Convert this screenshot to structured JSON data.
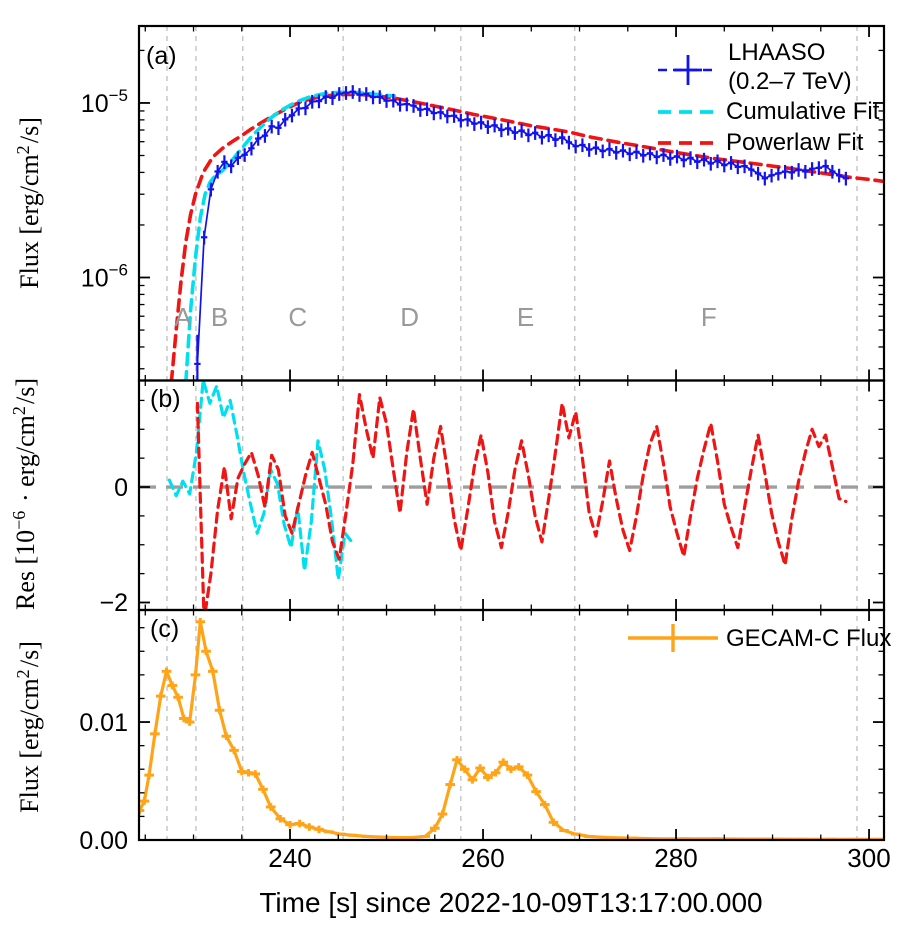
{
  "x_axis": {
    "label": "Time [s] since 2022-10-09T13:17:00.000",
    "min": 224.35,
    "max": 301.55,
    "major_ticks": [
      240,
      260,
      280,
      300
    ],
    "tick_labels": [
      "240",
      "260",
      "280",
      "300"
    ],
    "minor_ticks": [
      225,
      230,
      235,
      245,
      250,
      255,
      265,
      270,
      275,
      285,
      290,
      295
    ]
  },
  "colors": {
    "lhaaso_blue": "#1212ee",
    "cumulative_cyan": "#00dff0",
    "powerlaw_red": "#f01515",
    "gecam_orange": "#ffa418",
    "grid_gray": "#c4c4c4",
    "zero_line_gray": "#9e9e9e",
    "phase_label_gray": "#999999",
    "axis_black": "#000000"
  },
  "phases": {
    "line_times": [
      227.25,
      230.25,
      235.1,
      245.5,
      257.7,
      269.5,
      298.75
    ],
    "labels": [
      {
        "text": "A",
        "t": 228.9
      },
      {
        "text": "B",
        "t": 232.7
      },
      {
        "text": "C",
        "t": 240.8
      },
      {
        "text": "D",
        "t": 252.4
      },
      {
        "text": "E",
        "t": 264.4
      },
      {
        "text": "F",
        "t": 283.4
      }
    ]
  },
  "panels": {
    "a": {
      "label": "(a)",
      "ylabel_parts": [
        {
          "t": "Flux [erg/cm"
        },
        {
          "sup": "2"
        },
        {
          "t": "/s]"
        }
      ],
      "ytick_sup": [
        {
          "v_1e6": 10,
          "base": "10",
          "sup": "−5"
        },
        {
          "v_1e6": 1,
          "base": "10",
          "sup": "−6"
        }
      ],
      "y_minor_1e6": [
        0.3,
        0.4,
        0.5,
        0.6,
        0.7,
        0.8,
        0.9,
        2,
        3,
        4,
        5,
        6,
        7,
        8,
        9,
        20
      ]
    },
    "b": {
      "label": "(b)",
      "ylabel_parts": [
        {
          "t": "Res [10"
        },
        {
          "sup": "−6"
        },
        {
          "t": " · erg/cm"
        },
        {
          "sup": "2"
        },
        {
          "t": "/s]"
        }
      ],
      "ytick_values": [
        0,
        -2
      ],
      "ytick_labels": [
        "0",
        "−2"
      ],
      "y_minor": [
        1.5,
        1.0,
        0.5,
        -0.5,
        -1.0,
        -1.5
      ]
    },
    "c": {
      "label": "(c)",
      "ylabel_parts": [
        {
          "t": "Flux [erg/cm"
        },
        {
          "sup": "2"
        },
        {
          "t": "/s]"
        }
      ],
      "ytick_values": [
        0.01,
        0
      ],
      "ytick_labels": [
        "0.01",
        "0.00"
      ],
      "y_minor": [
        0.002,
        0.004,
        0.006,
        0.008,
        0.012,
        0.014,
        0.016,
        0.018
      ]
    }
  },
  "legend_a": {
    "items": [
      {
        "name": "lhaaso",
        "line1": "LHAASO",
        "line2": " (0.2–7 TeV)",
        "color": "#1212ee",
        "marker": "errorbar-dashed"
      },
      {
        "name": "cumulative-fit",
        "label": "Cumulative Fit",
        "color": "#00dff0",
        "marker": "dashed"
      },
      {
        "name": "powerlaw-fit",
        "label": "Powerlaw Fit",
        "color": "#f01515",
        "marker": "dashed"
      }
    ]
  },
  "legend_c": {
    "items": [
      {
        "name": "gecam-c",
        "label": "GECAM-C Flux",
        "color": "#ffa418",
        "marker": "errorbar"
      }
    ]
  },
  "chart_data": [
    {
      "id": "a",
      "type": "line",
      "yscale": "log",
      "ylabel": "Flux [erg/cm^2/s]",
      "ylim": [
        2.57e-07,
        2.76e-05
      ],
      "xlim": [
        224.35,
        301.55
      ],
      "series": [
        {
          "name": "LHAASO (0.2-7 TeV)",
          "style": "errorbar",
          "color": "#1212ee",
          "t0": 230.4,
          "dt": 0.7,
          "xerr_s": 0.33,
          "yerr_frac": 0.09,
          "yerr_floor_1e6": 0.15,
          "flux_1e6": [
            0.32,
            1.7,
            3.2,
            4.05,
            4.6,
            4.35,
            4.85,
            5.05,
            5.5,
            6.25,
            6.5,
            7.35,
            7.2,
            8.05,
            8.5,
            9.3,
            9.35,
            10.2,
            10.25,
            10.85,
            10.7,
            11.3,
            11.45,
            11.6,
            11.15,
            11.3,
            10.8,
            10.85,
            10.3,
            10.35,
            9.8,
            9.85,
            9.65,
            9.15,
            9.25,
            8.75,
            8.85,
            8.4,
            8.45,
            7.95,
            8.05,
            7.6,
            7.75,
            7.3,
            7.45,
            7.0,
            7.15,
            6.75,
            6.95,
            6.55,
            6.75,
            6.35,
            6.55,
            6.15,
            6.35,
            5.95,
            5.65,
            5.75,
            5.4,
            5.55,
            5.3,
            5.45,
            5.2,
            5.35,
            5.1,
            5.25,
            5.0,
            5.15,
            4.9,
            5.05,
            4.8,
            4.95,
            4.7,
            4.85,
            4.6,
            4.75,
            4.5,
            4.65,
            4.4,
            4.55,
            4.3,
            4.35,
            4.15,
            3.95,
            3.7,
            3.85,
            3.95,
            4.05,
            4.0,
            4.15,
            4.05,
            4.2,
            4.25,
            4.35,
            4.05,
            3.85,
            3.7
          ]
        },
        {
          "name": "Cumulative Fit",
          "style": "dashed-line",
          "color": "#00dff0",
          "t": [
            229.2,
            229.7,
            230.2,
            230.7,
            231.2,
            231.7,
            232.2,
            233,
            234,
            235,
            236,
            237,
            238,
            239,
            240,
            241,
            242,
            243,
            244,
            245,
            246,
            247,
            248,
            249,
            250,
            250.8
          ],
          "flux_1e6": [
            0.25,
            0.65,
            1.3,
            2.2,
            3.0,
            3.5,
            3.8,
            4.1,
            4.7,
            5.5,
            6.4,
            7.3,
            8.2,
            9.0,
            9.7,
            10.3,
            10.8,
            11.15,
            11.4,
            11.5,
            11.5,
            11.45,
            11.35,
            11.2,
            11.05,
            10.95
          ]
        },
        {
          "name": "Powerlaw Fit",
          "style": "dashed-line",
          "color": "#f01515",
          "t": [
            227.7,
            228.2,
            228.7,
            229.2,
            229.7,
            230.2,
            231,
            232,
            233,
            234,
            235,
            236,
            237,
            238,
            239,
            240,
            241,
            242,
            243,
            244,
            245,
            246,
            247,
            248,
            249,
            250,
            251,
            252,
            253,
            254,
            255,
            256,
            257,
            258,
            259,
            260,
            261,
            262,
            263,
            264,
            265,
            266,
            267,
            268,
            269,
            270,
            271,
            272,
            274,
            276,
            278,
            280,
            282,
            284,
            286,
            288,
            290,
            292,
            294,
            296,
            298,
            300,
            301.6
          ],
          "flux_1e6": [
            0.25,
            0.5,
            0.95,
            1.6,
            2.3,
            3.0,
            4.0,
            4.9,
            5.5,
            6.0,
            6.5,
            7.1,
            7.7,
            8.3,
            8.9,
            9.5,
            10.1,
            10.5,
            10.8,
            11.0,
            11.15,
            11.2,
            11.2,
            11.1,
            10.95,
            10.8,
            10.6,
            10.35,
            10.1,
            9.85,
            9.6,
            9.35,
            9.1,
            8.85,
            8.6,
            8.4,
            8.2,
            8.0,
            7.8,
            7.6,
            7.4,
            7.25,
            7.1,
            6.95,
            6.8,
            6.6,
            6.4,
            6.25,
            5.95,
            5.7,
            5.45,
            5.2,
            5.0,
            4.8,
            4.65,
            4.5,
            4.35,
            4.2,
            4.05,
            3.9,
            3.75,
            3.65,
            3.55
          ]
        }
      ]
    },
    {
      "id": "b",
      "type": "line",
      "ylabel": "Res [1e-6 erg/cm^2/s]",
      "ylim": [
        -2.13,
        1.845
      ],
      "xlim": [
        224.35,
        301.55
      ],
      "zero_line": 0,
      "series": [
        {
          "name": "Cumulative Fit residual",
          "style": "dashed-line",
          "color": "#00dff0",
          "t0": 227.5,
          "dt": 0.7,
          "res_1e6": [
            0.12,
            -0.15,
            0.1,
            -0.12,
            0.6,
            1.85,
            1.45,
            1.75,
            1.2,
            1.5,
            0.9,
            0.25,
            -0.3,
            -0.8,
            -0.45,
            0.3,
            0.05,
            -0.65,
            -1.05,
            -0.35,
            -1.45,
            -0.6,
            0.8,
            0.3,
            -0.55,
            -1.6,
            -0.8,
            -0.95
          ]
        },
        {
          "name": "Powerlaw Fit residual",
          "style": "dashed-line",
          "color": "#f01515",
          "t0": 230.4,
          "dt": 0.7,
          "res_1e6": [
            1.45,
            -2.3,
            -1.5,
            -0.4,
            0.35,
            -0.55,
            0.15,
            0.4,
            0.6,
            0.2,
            -0.35,
            0.55,
            0.3,
            -0.5,
            -0.8,
            -0.3,
            0.2,
            0.6,
            0.15,
            -0.3,
            -0.95,
            -1.25,
            -0.45,
            0.4,
            1.6,
            1.0,
            0.5,
            1.55,
            1.1,
            0.3,
            -0.45,
            0.6,
            1.35,
            0.5,
            -0.3,
            0.5,
            1.05,
            0.3,
            -0.55,
            -1.1,
            -0.4,
            0.35,
            0.9,
            0.25,
            -0.6,
            -1.05,
            -0.45,
            0.3,
            0.8,
            0.2,
            -0.5,
            -0.95,
            -0.2,
            0.6,
            1.45,
            0.85,
            1.3,
            0.5,
            -0.45,
            -0.85,
            -0.25,
            0.45,
            -0.2,
            -0.75,
            -1.1,
            -0.5,
            0.2,
            0.75,
            1.05,
            0.4,
            -0.35,
            -0.8,
            -1.2,
            -0.5,
            0.15,
            0.65,
            1.1,
            0.45,
            -0.3,
            -0.7,
            -1.05,
            -0.35,
            0.3,
            0.9,
            0.25,
            -0.45,
            -0.95,
            -1.35,
            -0.55,
            0.1,
            0.6,
            1.0,
            0.7,
            0.9,
            0.35,
            -0.2,
            -0.25
          ]
        }
      ]
    },
    {
      "id": "c",
      "type": "line",
      "ylabel": "Flux [erg/cm^2/s]",
      "ylim": [
        0,
        0.0195
      ],
      "xlim": [
        224.35,
        301.55
      ],
      "series": [
        {
          "name": "GECAM-C Flux",
          "style": "errorbar-line",
          "color": "#ffa418",
          "xerr_s": 0.5,
          "yerr": 0.00032,
          "t": [
            224.4,
            224.9,
            225.4,
            226.0,
            226.6,
            227.2,
            227.8,
            228.4,
            229.0,
            229.6,
            230.2,
            230.7,
            231.3,
            232.0,
            232.7,
            233.4,
            234.2,
            235.0,
            235.7,
            236.4,
            237.2,
            238.0,
            239.0,
            240.0,
            241.0,
            242.0,
            243.0,
            244.0,
            245.2,
            246.5,
            248.0,
            249.5,
            251.0,
            252.5,
            254.0,
            255.0,
            255.8,
            256.6,
            257.3,
            258.1,
            258.9,
            259.7,
            260.5,
            261.3,
            262.1,
            262.9,
            263.7,
            264.6,
            265.5,
            266.4,
            267.3,
            268.4,
            269.6,
            271.0,
            273.0,
            275.5,
            278.0,
            281.0,
            284.0,
            287.0,
            290.0,
            293.0,
            296.0,
            299.0,
            301.3
          ],
          "flux": [
            0.0025,
            0.0033,
            0.0055,
            0.009,
            0.0122,
            0.0143,
            0.0131,
            0.0121,
            0.0103,
            0.01,
            0.014,
            0.0185,
            0.016,
            0.0143,
            0.011,
            0.0088,
            0.0076,
            0.0058,
            0.0057,
            0.0056,
            0.0043,
            0.0028,
            0.0018,
            0.0013,
            0.0014,
            0.0011,
            0.0009,
            0.0007,
            0.0005,
            0.0004,
            0.0003,
            0.00025,
            0.0002,
            0.0002,
            0.0003,
            0.001,
            0.0022,
            0.0047,
            0.0068,
            0.006,
            0.0051,
            0.0061,
            0.0053,
            0.0057,
            0.0066,
            0.006,
            0.0062,
            0.0055,
            0.0041,
            0.003,
            0.0015,
            0.0008,
            0.0005,
            0.0003,
            0.0002,
            0.00015,
            0.0001,
            0.0001,
            0.0001,
            8e-05,
            8e-05,
            6e-05,
            6e-05,
            5e-05,
            5e-05
          ]
        }
      ]
    }
  ]
}
